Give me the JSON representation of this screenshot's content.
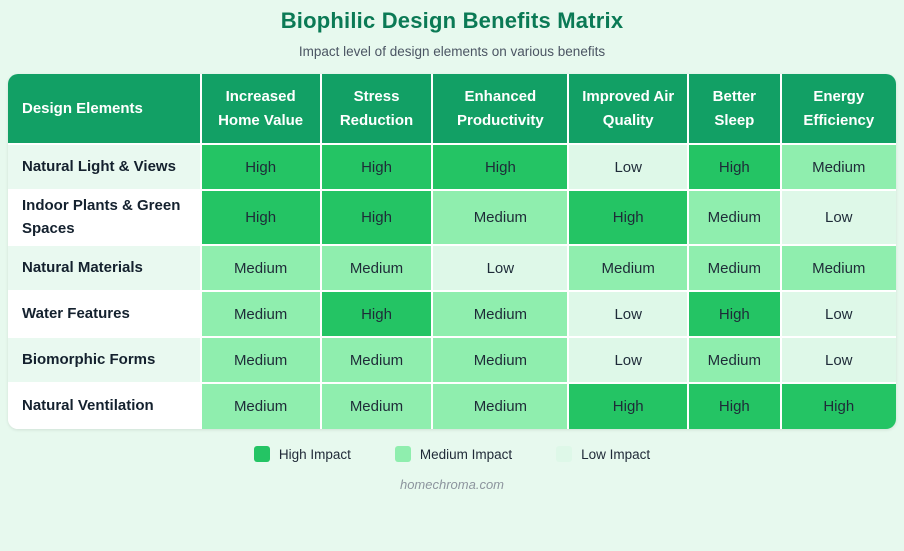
{
  "page": {
    "title": "Biophilic Design Benefits Matrix",
    "subtitle": "Impact level of design elements on various benefits",
    "footer": "homechroma.com"
  },
  "colors": {
    "page_bg": "#e7f9ee",
    "header_bg": "#12a065",
    "header_text": "#ffffff",
    "title_text": "#0b7a55",
    "row_label_odd_bg": "#e9f9f0",
    "row_label_even_bg": "#ffffff",
    "high": "#24c464",
    "medium": "#8feeae",
    "low": "#def8e8"
  },
  "chart_data": {
    "type": "heatmap",
    "title": "Biophilic Design Benefits Matrix",
    "subtitle": "Impact level of design elements on various benefits",
    "columns": [
      "Design Elements",
      "Increased Home Value",
      "Stress Reduction",
      "Enhanced Productivity",
      "Improved Air Quality",
      "Better Sleep",
      "Energy Efficiency"
    ],
    "rows": [
      {
        "label": "Natural Light & Views",
        "values": [
          "High",
          "High",
          "High",
          "Low",
          "High",
          "Medium"
        ]
      },
      {
        "label": "Indoor Plants & Green Spaces",
        "values": [
          "High",
          "High",
          "Medium",
          "High",
          "Medium",
          "Low"
        ]
      },
      {
        "label": "Natural Materials",
        "values": [
          "Medium",
          "Medium",
          "Low",
          "Medium",
          "Medium",
          "Medium"
        ]
      },
      {
        "label": "Water Features",
        "values": [
          "Medium",
          "High",
          "Medium",
          "Low",
          "High",
          "Low"
        ]
      },
      {
        "label": "Biomorphic Forms",
        "values": [
          "Medium",
          "Medium",
          "Medium",
          "Low",
          "Medium",
          "Low"
        ]
      },
      {
        "label": "Natural Ventilation",
        "values": [
          "Medium",
          "Medium",
          "Medium",
          "High",
          "High",
          "High"
        ]
      }
    ],
    "scale": [
      "Low",
      "Medium",
      "High"
    ],
    "impact_colors": {
      "High": "#24c464",
      "Medium": "#8feeae",
      "Low": "#def8e8"
    },
    "legend_position": "bottom",
    "grid": "white 2px separators"
  },
  "legend": {
    "items": [
      {
        "label": "High Impact",
        "level": "High"
      },
      {
        "label": "Medium Impact",
        "level": "Medium"
      },
      {
        "label": "Low Impact",
        "level": "Low"
      }
    ]
  }
}
